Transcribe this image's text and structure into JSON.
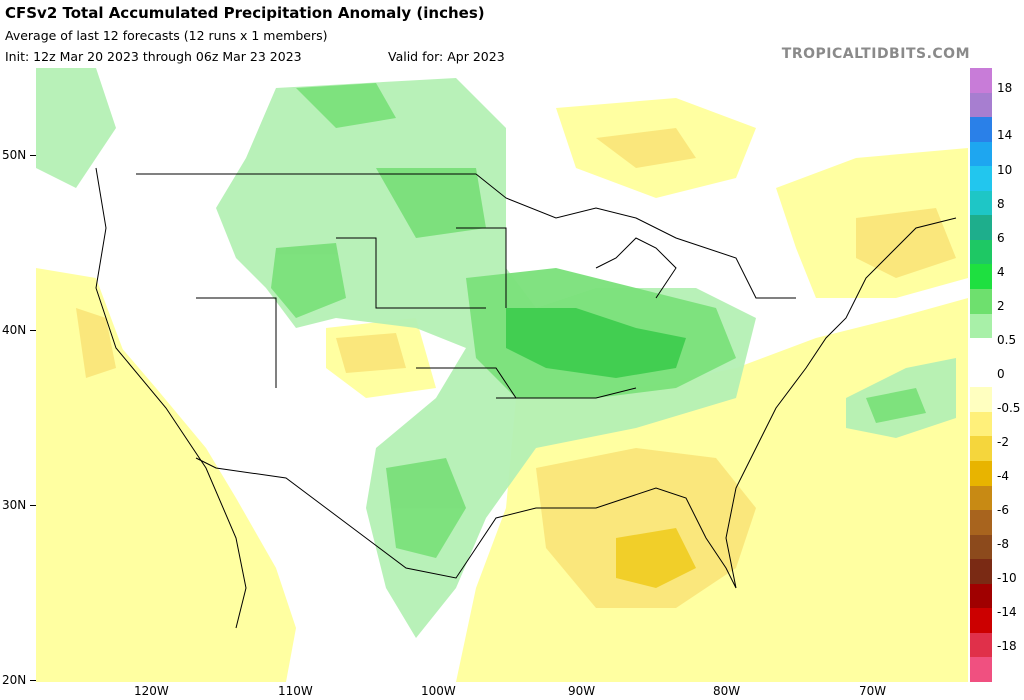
{
  "header": {
    "title": "CFSv2 Total Accumulated Precipitation Anomaly (inches)",
    "subtitle": "Average of last 12 forecasts (12 runs x 1 members)",
    "init": "Init: 12z Mar 20 2023 through 06z Mar 23 2023",
    "valid": "Valid for: Apr 2023",
    "brand": "TROPICALTIDBITS.COM"
  },
  "map": {
    "lat_labels": [
      "50N",
      "40N",
      "30N",
      "20N"
    ],
    "lon_labels": [
      "120W",
      "110W",
      "100W",
      "90W",
      "80W",
      "70W"
    ]
  },
  "colorbar": {
    "labels": [
      "18",
      "14",
      "10",
      "8",
      "6",
      "4",
      "2",
      "0.5",
      "0",
      "-0.5",
      "-2",
      "-4",
      "-6",
      "-8",
      "-10",
      "-14",
      "-18"
    ],
    "colors": [
      "#c87cd8",
      "#a77ed0",
      "#2a80e8",
      "#1ea6f0",
      "#22c6ee",
      "#1ec6c6",
      "#1eae8c",
      "#1ec864",
      "#1ee040",
      "#6ee06e",
      "#a8f0a8",
      "#ffffff",
      "#ffffff",
      "#ffffc0",
      "#fff07a",
      "#f5d63c",
      "#e8b400",
      "#c88a14",
      "#a8641e",
      "#8c4a1c",
      "#7a2a14",
      "#a00000",
      "#cc0000",
      "#e0304a",
      "#f05080"
    ]
  }
}
